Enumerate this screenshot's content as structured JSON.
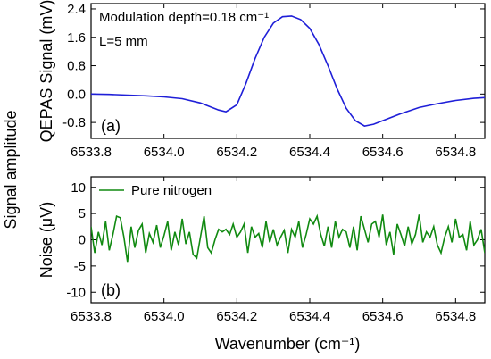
{
  "figure": {
    "ylabel_outer": "Signal amplitude",
    "xlabel": "Wavenumber (cm⁻¹)"
  },
  "chart_data": [
    {
      "type": "line",
      "panel_label": "(a)",
      "ylabel": "QEPAS Signal  (mV)",
      "xlabel": "",
      "xlim": [
        6533.8,
        6534.88
      ],
      "ylim": [
        -1.25,
        2.55
      ],
      "xticks": [
        6533.8,
        6534.0,
        6534.2,
        6534.4,
        6534.6,
        6534.8
      ],
      "xtick_labels": [
        "6533.8",
        "6534.0",
        "6534.2",
        "6534.4",
        "6534.6",
        "6534.8"
      ],
      "yticks": [
        2.4,
        1.6,
        0.8,
        0.0,
        -0.8
      ],
      "ytick_labels": [
        "2.4",
        "1.6",
        "0.8",
        "0.0",
        "-0.8"
      ],
      "annotations": [
        "Modulation depth=0.18 cm⁻¹",
        "L=5 mm"
      ],
      "series": [
        {
          "color": "#1f1fd8",
          "x": [
            6533.8,
            6533.85,
            6533.9,
            6533.95,
            6534.0,
            6534.05,
            6534.1,
            6534.15,
            6534.17,
            6534.2,
            6534.225,
            6534.25,
            6534.275,
            6534.3,
            6534.325,
            6534.35,
            6534.375,
            6534.4,
            6534.425,
            6534.45,
            6534.475,
            6534.5,
            6534.525,
            6534.55,
            6534.575,
            6534.6,
            6534.65,
            6534.7,
            6534.75,
            6534.8,
            6534.85,
            6534.88
          ],
          "values": [
            0.0,
            -0.01,
            -0.03,
            -0.05,
            -0.08,
            -0.13,
            -0.25,
            -0.45,
            -0.5,
            -0.3,
            0.3,
            1.0,
            1.6,
            2.0,
            2.18,
            2.2,
            2.1,
            1.85,
            1.4,
            0.8,
            0.15,
            -0.4,
            -0.75,
            -0.9,
            -0.85,
            -0.75,
            -0.55,
            -0.38,
            -0.27,
            -0.18,
            -0.12,
            -0.1
          ]
        }
      ]
    },
    {
      "type": "line",
      "panel_label": "(b)",
      "ylabel": "Noise (μV)",
      "xlabel": "Wavenumber (cm⁻¹)",
      "xlim": [
        6533.8,
        6534.88
      ],
      "ylim": [
        -12,
        12
      ],
      "xticks": [
        6533.8,
        6534.0,
        6534.2,
        6534.4,
        6534.6,
        6534.8
      ],
      "xtick_labels": [
        "6533.8",
        "6534.0",
        "6534.2",
        "6534.4",
        "6534.6",
        "6534.8"
      ],
      "yticks": [
        10,
        5,
        0,
        -5,
        -10
      ],
      "ytick_labels": [
        "10",
        "5",
        "0",
        "-5",
        "-10"
      ],
      "legend": {
        "position": "top-left"
      },
      "series": [
        {
          "name": "Pure nitrogen",
          "color": "#118a11",
          "x": [
            6533.8,
            6533.81,
            6533.82,
            6533.83,
            6533.84,
            6533.85,
            6533.86,
            6533.87,
            6533.88,
            6533.89,
            6533.9,
            6533.91,
            6533.92,
            6533.93,
            6533.94,
            6533.95,
            6533.96,
            6533.97,
            6533.98,
            6533.99,
            6534.0,
            6534.01,
            6534.02,
            6534.03,
            6534.04,
            6534.05,
            6534.06,
            6534.07,
            6534.08,
            6534.09,
            6534.1,
            6534.11,
            6534.12,
            6534.13,
            6534.14,
            6534.15,
            6534.16,
            6534.17,
            6534.18,
            6534.19,
            6534.2,
            6534.21,
            6534.22,
            6534.23,
            6534.24,
            6534.25,
            6534.26,
            6534.27,
            6534.28,
            6534.29,
            6534.3,
            6534.31,
            6534.32,
            6534.33,
            6534.34,
            6534.35,
            6534.36,
            6534.37,
            6534.38,
            6534.39,
            6534.4,
            6534.41,
            6534.42,
            6534.43,
            6534.44,
            6534.45,
            6534.46,
            6534.47,
            6534.48,
            6534.49,
            6534.5,
            6534.51,
            6534.52,
            6534.53,
            6534.54,
            6534.55,
            6534.56,
            6534.57,
            6534.58,
            6534.59,
            6534.6,
            6534.61,
            6534.62,
            6534.63,
            6534.64,
            6534.65,
            6534.66,
            6534.67,
            6534.68,
            6534.69,
            6534.7,
            6534.71,
            6534.72,
            6534.73,
            6534.74,
            6534.75,
            6534.76,
            6534.77,
            6534.78,
            6534.79,
            6534.8,
            6534.81,
            6534.82,
            6534.83,
            6534.84,
            6534.85,
            6534.86,
            6534.87,
            6534.88
          ],
          "values": [
            2.5,
            -2.5,
            1.5,
            -1.0,
            3.5,
            -2.0,
            1.0,
            4.5,
            4.2,
            0.5,
            -4.2,
            2.5,
            -1.5,
            1.8,
            3.0,
            -2.5,
            1.2,
            -0.5,
            2.8,
            -1.5,
            0.8,
            3.5,
            -2.0,
            1.5,
            -1.0,
            4.0,
            -0.8,
            1.5,
            -2.8,
            -3.5,
            0.5,
            4.5,
            -1.5,
            -2.5,
            0.0,
            2.0,
            1.5,
            2.0,
            1.0,
            3.0,
            0.5,
            1.5,
            3.0,
            -2.5,
            2.5,
            0.5,
            1.2,
            -1.5,
            3.5,
            -0.5,
            2.0,
            -1.0,
            0.5,
            1.8,
            -2.5,
            2.0,
            0.5,
            3.5,
            -1.5,
            1.0,
            4.0,
            3.0,
            4.5,
            1.0,
            -1.2,
            2.5,
            -1.5,
            3.5,
            0.5,
            2.0,
            1.5,
            -1.5,
            2.5,
            -2.0,
            4.5,
            2.0,
            -0.5,
            3.0,
            3.5,
            0.5,
            4.8,
            -1.0,
            1.5,
            -2.8,
            3.0,
            1.0,
            -1.2,
            2.5,
            -0.8,
            1.0,
            4.8,
            -0.5,
            1.5,
            0.5,
            2.5,
            -1.0,
            -2.5,
            0.5,
            2.5,
            -0.5,
            4.0,
            0.5,
            1.0,
            -2.0,
            3.5,
            -1.0,
            0.0,
            2.0,
            -2.5
          ]
        }
      ]
    }
  ]
}
